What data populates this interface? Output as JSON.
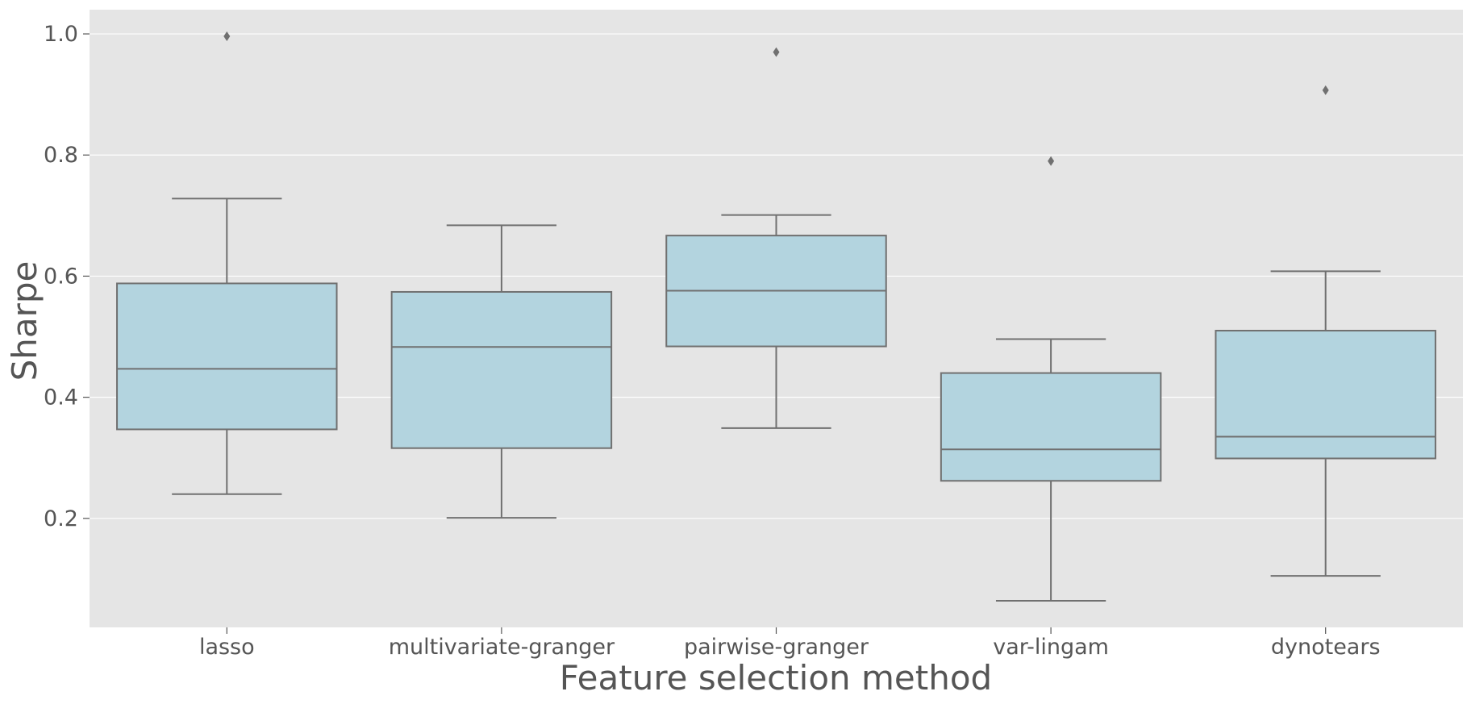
{
  "chart_data": {
    "type": "box",
    "xlabel": "Feature selection method",
    "ylabel": "Sharpe",
    "ylim": [
      0.02,
      1.04
    ],
    "yticks": [
      0.2,
      0.4,
      0.6,
      0.8,
      1.0
    ],
    "ytick_labels": [
      "0.2",
      "0.4",
      "0.6",
      "0.8",
      "1.0"
    ],
    "grid": true,
    "categories": [
      "lasso",
      "multivariate-granger",
      "pairwise-granger",
      "var-lingam",
      "dynotears"
    ],
    "boxes": [
      {
        "category": "lasso",
        "whisker_low": 0.24,
        "q1": 0.347,
        "median": 0.447,
        "q3": 0.588,
        "whisker_high": 0.728,
        "outliers": [
          0.996
        ]
      },
      {
        "category": "multivariate-granger",
        "whisker_low": 0.201,
        "q1": 0.316,
        "median": 0.483,
        "q3": 0.574,
        "whisker_high": 0.684,
        "outliers": []
      },
      {
        "category": "pairwise-granger",
        "whisker_low": 0.349,
        "q1": 0.484,
        "median": 0.576,
        "q3": 0.667,
        "whisker_high": 0.701,
        "outliers": [
          0.97
        ]
      },
      {
        "category": "var-lingam",
        "whisker_low": 0.064,
        "q1": 0.262,
        "median": 0.314,
        "q3": 0.44,
        "whisker_high": 0.496,
        "outliers": [
          0.79
        ]
      },
      {
        "category": "dynotears",
        "whisker_low": 0.105,
        "q1": 0.299,
        "median": 0.335,
        "q3": 0.51,
        "whisker_high": 0.608,
        "outliers": [
          0.907
        ]
      }
    ],
    "colors": {
      "plot_background": "#e5e5e5",
      "grid": "#ffffff",
      "box_fill": "#b3d4df",
      "line": "#707070",
      "text": "#555555"
    }
  }
}
